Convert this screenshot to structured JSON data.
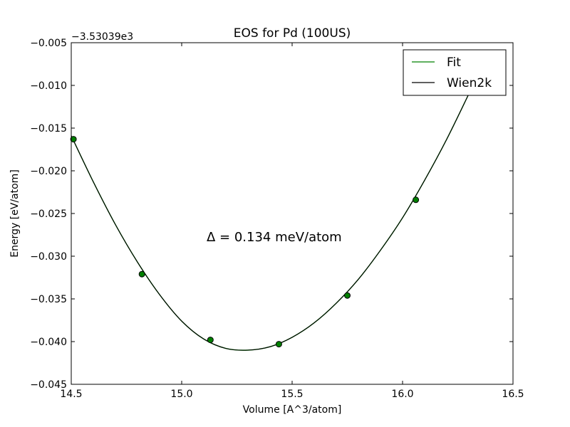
{
  "chart_data": {
    "type": "line",
    "title": "EOS for Pd (100US)",
    "xlabel": "Volume [A^3/atom]",
    "ylabel": "Energy [eV/atom]",
    "offset_label": "−3.53039e3",
    "annotation": "Δ = 0.134 meV/atom",
    "xlim": [
      14.5,
      16.5
    ],
    "ylim": [
      -0.045,
      -0.005
    ],
    "x_ticks": [
      14.5,
      15.0,
      15.5,
      16.0,
      16.5
    ],
    "x_tick_labels": [
      "14.5",
      "15.0",
      "15.5",
      "16.0",
      "16.5"
    ],
    "y_ticks": [
      -0.005,
      -0.01,
      -0.015,
      -0.02,
      -0.025,
      -0.03,
      -0.035,
      -0.04,
      -0.045
    ],
    "y_tick_labels": [
      "−0.005",
      "−0.010",
      "−0.015",
      "−0.020",
      "−0.025",
      "−0.030",
      "−0.035",
      "−0.040",
      "−0.045"
    ],
    "legend_position": "top-right",
    "grid": false,
    "series": [
      {
        "name": "Fit",
        "color": "#008000",
        "style": "line",
        "x": [
          14.5,
          14.6,
          14.7,
          14.8,
          14.9,
          15.0,
          15.1,
          15.2,
          15.3,
          15.4,
          15.5,
          15.6,
          15.7,
          15.8,
          15.9,
          16.0,
          16.1,
          16.2,
          16.3
        ],
        "y": [
          -0.0159,
          -0.0213,
          -0.0263,
          -0.0307,
          -0.0345,
          -0.0376,
          -0.0397,
          -0.0408,
          -0.041,
          -0.0406,
          -0.0395,
          -0.0378,
          -0.0355,
          -0.0327,
          -0.0293,
          -0.0255,
          -0.0211,
          -0.0163,
          -0.011
        ]
      },
      {
        "name": "Wien2k",
        "color": "#000000",
        "style": "line",
        "x": [
          14.5,
          14.6,
          14.7,
          14.8,
          14.9,
          15.0,
          15.1,
          15.2,
          15.3,
          15.4,
          15.5,
          15.6,
          15.7,
          15.8,
          15.9,
          16.0,
          16.1,
          16.2,
          16.3
        ],
        "y": [
          -0.0159,
          -0.0213,
          -0.0263,
          -0.0307,
          -0.0345,
          -0.0376,
          -0.0397,
          -0.0408,
          -0.041,
          -0.0406,
          -0.0395,
          -0.0378,
          -0.0355,
          -0.0327,
          -0.0293,
          -0.0255,
          -0.0211,
          -0.0163,
          -0.011
        ]
      },
      {
        "name": "",
        "color": "#008000",
        "style": "points",
        "x": [
          14.51,
          14.82,
          15.13,
          15.44,
          15.75,
          16.06
        ],
        "y": [
          -0.0163,
          -0.0321,
          -0.0398,
          -0.0403,
          -0.0346,
          -0.0234
        ]
      }
    ]
  }
}
